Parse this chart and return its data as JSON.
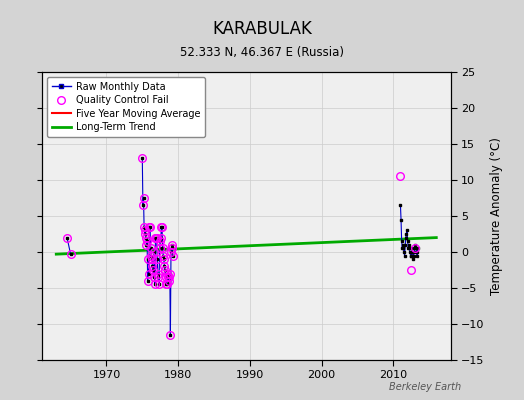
{
  "title": "KARABULAK",
  "subtitle": "52.333 N, 46.367 E (Russia)",
  "ylabel": "Temperature Anomaly (°C)",
  "credit": "Berkeley Earth",
  "ylim": [
    -15,
    25
  ],
  "xlim": [
    1961,
    2018
  ],
  "yticks": [
    -15,
    -10,
    -5,
    0,
    5,
    10,
    15,
    20,
    25
  ],
  "xticks": [
    1970,
    1980,
    1990,
    2000,
    2010
  ],
  "bg_color": "#d8d8d8",
  "plot_bg_color": "#f0f0f0",
  "p1_data": [
    [
      1964.5,
      2.0
    ],
    [
      1965.0,
      -0.3
    ]
  ],
  "p2_data": [
    [
      1975.0,
      13.0
    ],
    [
      1975.083,
      6.5
    ],
    [
      1975.167,
      7.5
    ],
    [
      1975.25,
      3.5
    ],
    [
      1975.333,
      2.5
    ],
    [
      1975.417,
      3.0
    ],
    [
      1975.5,
      2.0
    ],
    [
      1975.583,
      1.0
    ],
    [
      1975.667,
      1.5
    ],
    [
      1975.75,
      -4.0
    ],
    [
      1975.833,
      -1.0
    ],
    [
      1975.917,
      -3.0
    ],
    [
      1976.0,
      3.5
    ],
    [
      1976.083,
      3.5
    ],
    [
      1976.167,
      0.5
    ],
    [
      1976.25,
      -0.5
    ],
    [
      1976.333,
      -1.0
    ],
    [
      1976.417,
      -2.0
    ],
    [
      1976.5,
      -2.5
    ],
    [
      1976.583,
      -3.5
    ],
    [
      1976.667,
      0.0
    ],
    [
      1976.75,
      -4.5
    ],
    [
      1976.833,
      2.0
    ],
    [
      1976.917,
      2.0
    ],
    [
      1977.0,
      2.0
    ],
    [
      1977.083,
      -1.0
    ],
    [
      1977.167,
      -3.0
    ],
    [
      1977.25,
      -3.5
    ],
    [
      1977.333,
      -4.5
    ],
    [
      1977.417,
      0.5
    ],
    [
      1977.5,
      1.5
    ],
    [
      1977.583,
      2.0
    ],
    [
      1977.667,
      3.5
    ],
    [
      1977.75,
      3.5
    ],
    [
      1977.833,
      0.5
    ],
    [
      1977.917,
      -0.5
    ],
    [
      1978.0,
      -1.0
    ],
    [
      1978.083,
      -2.0
    ],
    [
      1978.167,
      -2.5
    ],
    [
      1978.25,
      -3.5
    ],
    [
      1978.333,
      -4.5
    ],
    [
      1978.417,
      -4.5
    ],
    [
      1978.5,
      -3.0
    ],
    [
      1978.583,
      -3.5
    ],
    [
      1978.667,
      -4.0
    ],
    [
      1978.75,
      -3.5
    ],
    [
      1978.833,
      -3.0
    ],
    [
      1978.917,
      -11.5
    ],
    [
      1979.0,
      0.0
    ],
    [
      1979.083,
      0.5
    ],
    [
      1979.167,
      1.0
    ],
    [
      1979.25,
      -0.5
    ]
  ],
  "p3_data": [
    [
      2011.0,
      6.5
    ],
    [
      2011.083,
      4.5
    ],
    [
      2011.167,
      1.5
    ],
    [
      2011.25,
      0.5
    ],
    [
      2011.333,
      1.0
    ],
    [
      2011.417,
      0.5
    ],
    [
      2011.5,
      0.0
    ],
    [
      2011.583,
      -0.5
    ],
    [
      2011.667,
      1.0
    ],
    [
      2011.75,
      2.0
    ],
    [
      2011.833,
      2.5
    ],
    [
      2011.917,
      3.0
    ],
    [
      2012.0,
      1.5
    ],
    [
      2012.083,
      0.5
    ],
    [
      2012.167,
      1.0
    ],
    [
      2012.25,
      0.5
    ],
    [
      2012.333,
      0.0
    ],
    [
      2012.417,
      -0.5
    ],
    [
      2012.5,
      -0.5
    ],
    [
      2012.583,
      0.0
    ],
    [
      2012.667,
      0.5
    ],
    [
      2012.75,
      -1.0
    ],
    [
      2012.833,
      -0.5
    ],
    [
      2012.917,
      0.0
    ],
    [
      2013.0,
      0.5
    ],
    [
      2013.083,
      1.0
    ],
    [
      2013.167,
      0.5
    ],
    [
      2013.25,
      0.0
    ],
    [
      2013.333,
      -0.5
    ],
    [
      2013.417,
      0.5
    ]
  ],
  "qc_all_data": [
    [
      1964.5,
      2.0
    ],
    [
      1965.0,
      -0.3
    ],
    [
      1975.0,
      13.0
    ],
    [
      1975.083,
      6.5
    ],
    [
      1975.167,
      7.5
    ],
    [
      1975.25,
      3.5
    ],
    [
      1975.333,
      2.5
    ],
    [
      1975.417,
      3.0
    ],
    [
      1975.5,
      2.0
    ],
    [
      1975.583,
      1.0
    ],
    [
      1975.667,
      1.5
    ],
    [
      1975.75,
      -4.0
    ],
    [
      1975.833,
      -1.0
    ],
    [
      1975.917,
      -3.0
    ],
    [
      1976.0,
      3.5
    ],
    [
      1976.083,
      3.5
    ],
    [
      1976.167,
      0.5
    ],
    [
      1976.25,
      -0.5
    ],
    [
      1976.333,
      -1.0
    ],
    [
      1976.417,
      -2.0
    ],
    [
      1976.5,
      -2.5
    ],
    [
      1976.583,
      -3.5
    ],
    [
      1976.667,
      0.0
    ],
    [
      1976.75,
      -4.5
    ],
    [
      1976.833,
      2.0
    ],
    [
      1976.917,
      2.0
    ],
    [
      1977.0,
      2.0
    ],
    [
      1977.083,
      -1.0
    ],
    [
      1977.167,
      -3.0
    ],
    [
      1977.25,
      -3.5
    ],
    [
      1977.333,
      -4.5
    ],
    [
      1977.417,
      0.5
    ],
    [
      1977.5,
      1.5
    ],
    [
      1977.583,
      2.0
    ],
    [
      1977.667,
      3.5
    ],
    [
      1977.75,
      3.5
    ],
    [
      1977.833,
      0.5
    ],
    [
      1977.917,
      -0.5
    ],
    [
      1978.0,
      -1.0
    ],
    [
      1978.083,
      -2.0
    ],
    [
      1978.167,
      -2.5
    ],
    [
      1978.25,
      -3.5
    ],
    [
      1978.333,
      -4.5
    ],
    [
      1978.417,
      -4.5
    ],
    [
      1978.5,
      -3.0
    ],
    [
      1978.583,
      -3.5
    ],
    [
      1978.667,
      -4.0
    ],
    [
      1978.75,
      -3.5
    ],
    [
      1978.833,
      -3.0
    ],
    [
      1978.917,
      -11.5
    ],
    [
      1979.0,
      0.0
    ],
    [
      1979.083,
      0.5
    ],
    [
      1979.167,
      1.0
    ],
    [
      1979.25,
      -0.5
    ],
    [
      2011.0,
      10.5
    ],
    [
      2012.5,
      -2.5
    ],
    [
      2013.0,
      0.5
    ]
  ],
  "trend_x": [
    1963,
    2016
  ],
  "trend_y": [
    -0.3,
    2.0
  ],
  "colors": {
    "raw_line": "#0000cc",
    "raw_dot": "#000000",
    "qc_fail": "#ff00ff",
    "moving_avg": "#ff0000",
    "trend": "#00aa00",
    "grid": "#cccccc",
    "background": "#d4d4d4",
    "plot_background": "#efefef"
  }
}
